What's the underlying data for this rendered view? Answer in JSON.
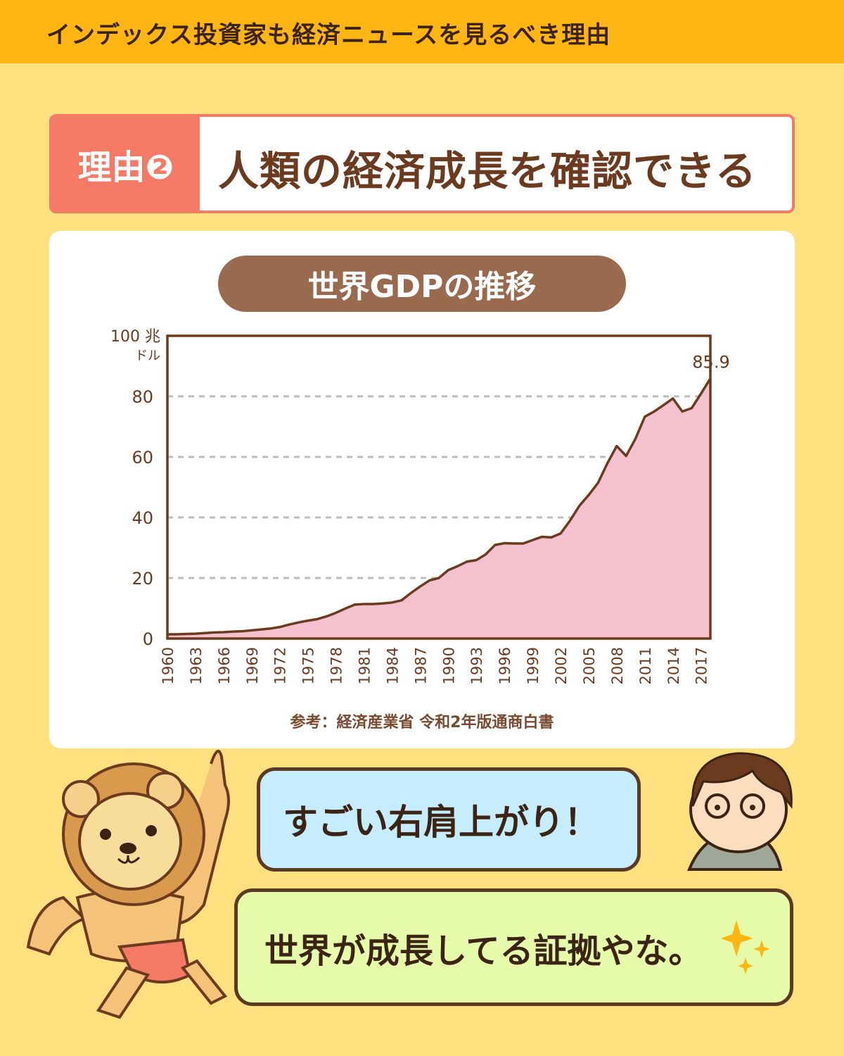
{
  "header": {
    "title": "インデックス投資家も経済ニュースを見るべき理由"
  },
  "reason": {
    "tag": "理由❷",
    "heading": "人類の経済成長を確認できる"
  },
  "chart_pill": "世界GDPの推移",
  "chart_data": {
    "type": "area",
    "title": "世界GDPの推移",
    "ylabel": "100 兆ドル",
    "ylabel_line1": "100 兆",
    "ylabel_line2": "ドル",
    "ylim": [
      0,
      100
    ],
    "yticks": [
      0,
      20,
      40,
      60,
      80
    ],
    "grid": "horizontal dashed",
    "xlim": [
      1960,
      2018
    ],
    "xticks": [
      1960,
      1963,
      1966,
      1969,
      1972,
      1975,
      1978,
      1981,
      1984,
      1987,
      1990,
      1993,
      1996,
      1999,
      2002,
      2005,
      2008,
      2011,
      2014,
      2017
    ],
    "x": [
      1960,
      1961,
      1962,
      1963,
      1964,
      1965,
      1966,
      1967,
      1968,
      1969,
      1970,
      1971,
      1972,
      1973,
      1974,
      1975,
      1976,
      1977,
      1978,
      1979,
      1980,
      1981,
      1982,
      1983,
      1984,
      1985,
      1986,
      1987,
      1988,
      1989,
      1990,
      1991,
      1992,
      1993,
      1994,
      1995,
      1996,
      1997,
      1998,
      1999,
      2000,
      2001,
      2002,
      2003,
      2004,
      2005,
      2006,
      2007,
      2008,
      2009,
      2010,
      2011,
      2012,
      2013,
      2014,
      2015,
      2016,
      2017,
      2018
    ],
    "values": [
      1.4,
      1.4,
      1.5,
      1.6,
      1.8,
      2.0,
      2.1,
      2.3,
      2.4,
      2.7,
      3.0,
      3.3,
      3.8,
      4.6,
      5.3,
      5.9,
      6.4,
      7.3,
      8.5,
      9.9,
      11.2,
      11.4,
      11.4,
      11.6,
      11.9,
      12.6,
      15.0,
      17.2,
      19.2,
      20.0,
      22.6,
      23.9,
      25.4,
      25.9,
      27.8,
      30.9,
      31.5,
      31.4,
      31.4,
      32.5,
      33.6,
      33.4,
      34.7,
      38.9,
      43.8,
      47.4,
      51.4,
      57.9,
      63.6,
      60.3,
      66.0,
      73.3,
      75.0,
      77.1,
      79.3,
      75.0,
      76.1,
      80.9,
      85.9
    ],
    "annotation": "85.9",
    "colors": {
      "fill": "#F4C2CF",
      "line": "#6B3A1F",
      "grid": "#BDBDBD"
    }
  },
  "source": "参考：経済産業省  令和2年版通商白書",
  "dialogue": {
    "man": "すごい右肩上がり！",
    "lion": "世界が成長してる証拠やな。"
  }
}
